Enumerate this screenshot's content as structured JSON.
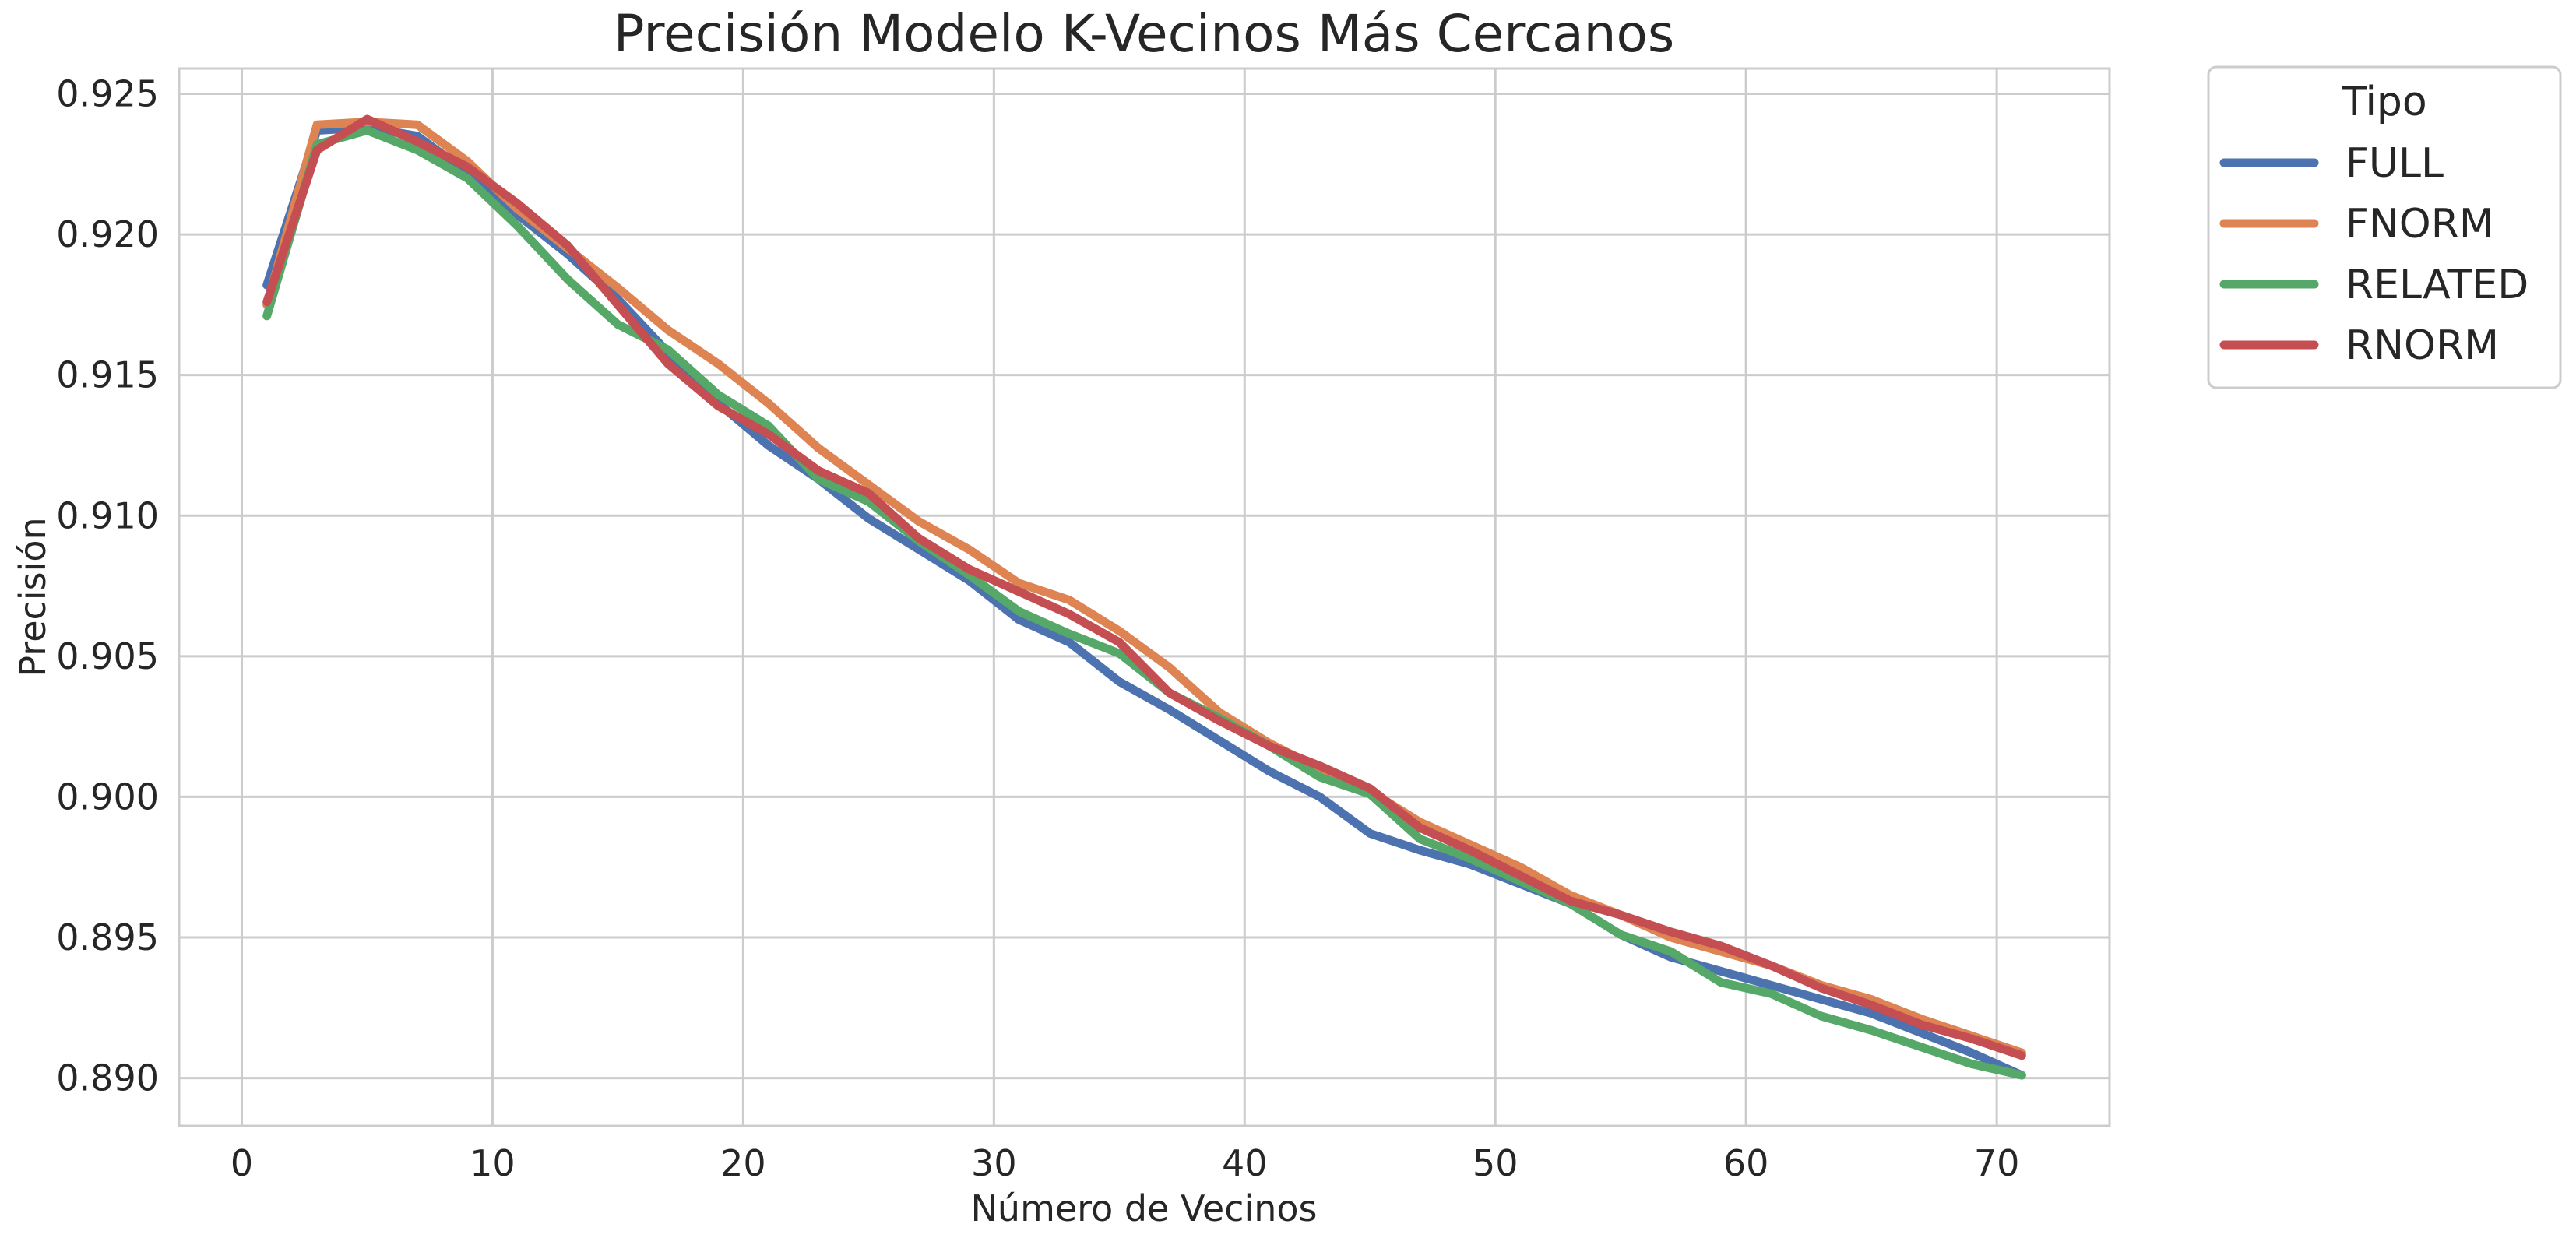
{
  "chart_data": {
    "type": "line",
    "title": "Precisión Modelo K-Vecinos Más Cercanos",
    "xlabel": "Número de Vecinos",
    "ylabel": "Precisión",
    "xlim": [
      -2.5,
      74.5
    ],
    "ylim": [
      0.8883,
      0.9259
    ],
    "xticks": [
      0,
      10,
      20,
      30,
      40,
      50,
      60,
      70
    ],
    "yticks": [
      0.89,
      0.895,
      0.9,
      0.905,
      0.91,
      0.915,
      0.92,
      0.925
    ],
    "xtick_labels": [
      "0",
      "10",
      "20",
      "30",
      "40",
      "50",
      "60",
      "70"
    ],
    "ytick_labels": [
      "0.890",
      "0.895",
      "0.900",
      "0.905",
      "0.910",
      "0.915",
      "0.920",
      "0.925"
    ],
    "grid": true,
    "legend": {
      "title": "Tipo",
      "placement": "outside-top-right"
    },
    "x": [
      1,
      3,
      5,
      7,
      9,
      11,
      13,
      15,
      17,
      19,
      21,
      23,
      25,
      27,
      29,
      31,
      33,
      35,
      37,
      39,
      41,
      43,
      45,
      47,
      49,
      51,
      53,
      55,
      57,
      59,
      61,
      63,
      65,
      67,
      69,
      71
    ],
    "series": [
      {
        "name": "FULL",
        "color": "#4c72b0",
        "values": [
          0.9182,
          0.9237,
          0.9238,
          0.9235,
          0.9222,
          0.9207,
          0.9193,
          0.9177,
          0.9158,
          0.914,
          0.9125,
          0.9113,
          0.9099,
          0.9088,
          0.9077,
          0.9063,
          0.9055,
          0.9041,
          0.9031,
          0.902,
          0.9009,
          0.9,
          0.8987,
          0.8981,
          0.8976,
          0.8969,
          0.8962,
          0.8951,
          0.8943,
          0.8938,
          0.8933,
          0.8928,
          0.8923,
          0.8916,
          0.8909,
          0.8901
        ]
      },
      {
        "name": "FNORM",
        "color": "#dd8452",
        "values": [
          0.9175,
          0.9239,
          0.924,
          0.9239,
          0.9226,
          0.9209,
          0.9195,
          0.9181,
          0.9166,
          0.9154,
          0.914,
          0.9124,
          0.9111,
          0.9098,
          0.9088,
          0.9076,
          0.907,
          0.9059,
          0.9046,
          0.903,
          0.9019,
          0.901,
          0.9002,
          0.8991,
          0.8983,
          0.8975,
          0.8965,
          0.8958,
          0.895,
          0.8945,
          0.894,
          0.8933,
          0.8928,
          0.8921,
          0.8915,
          0.8909
        ]
      },
      {
        "name": "RELATED",
        "color": "#55a868",
        "values": [
          0.9171,
          0.9232,
          0.9237,
          0.923,
          0.922,
          0.9203,
          0.9184,
          0.9168,
          0.9159,
          0.9143,
          0.9132,
          0.9113,
          0.9105,
          0.9091,
          0.9079,
          0.9066,
          0.9058,
          0.9051,
          0.9037,
          0.9028,
          0.9018,
          0.9007,
          0.9001,
          0.8985,
          0.8978,
          0.897,
          0.8962,
          0.8951,
          0.8945,
          0.8934,
          0.893,
          0.8922,
          0.8917,
          0.8911,
          0.8905,
          0.8901
        ]
      },
      {
        "name": "RNORM",
        "color": "#c44e52",
        "values": [
          0.9176,
          0.923,
          0.9241,
          0.9233,
          0.9224,
          0.9211,
          0.9196,
          0.9175,
          0.9154,
          0.9139,
          0.9129,
          0.9116,
          0.9108,
          0.9092,
          0.9081,
          0.9073,
          0.9065,
          0.9055,
          0.9037,
          0.9027,
          0.9018,
          0.9011,
          0.9003,
          0.8989,
          0.8981,
          0.8972,
          0.8963,
          0.8958,
          0.8952,
          0.8947,
          0.894,
          0.8932,
          0.8926,
          0.8919,
          0.8914,
          0.8908
        ]
      }
    ]
  }
}
